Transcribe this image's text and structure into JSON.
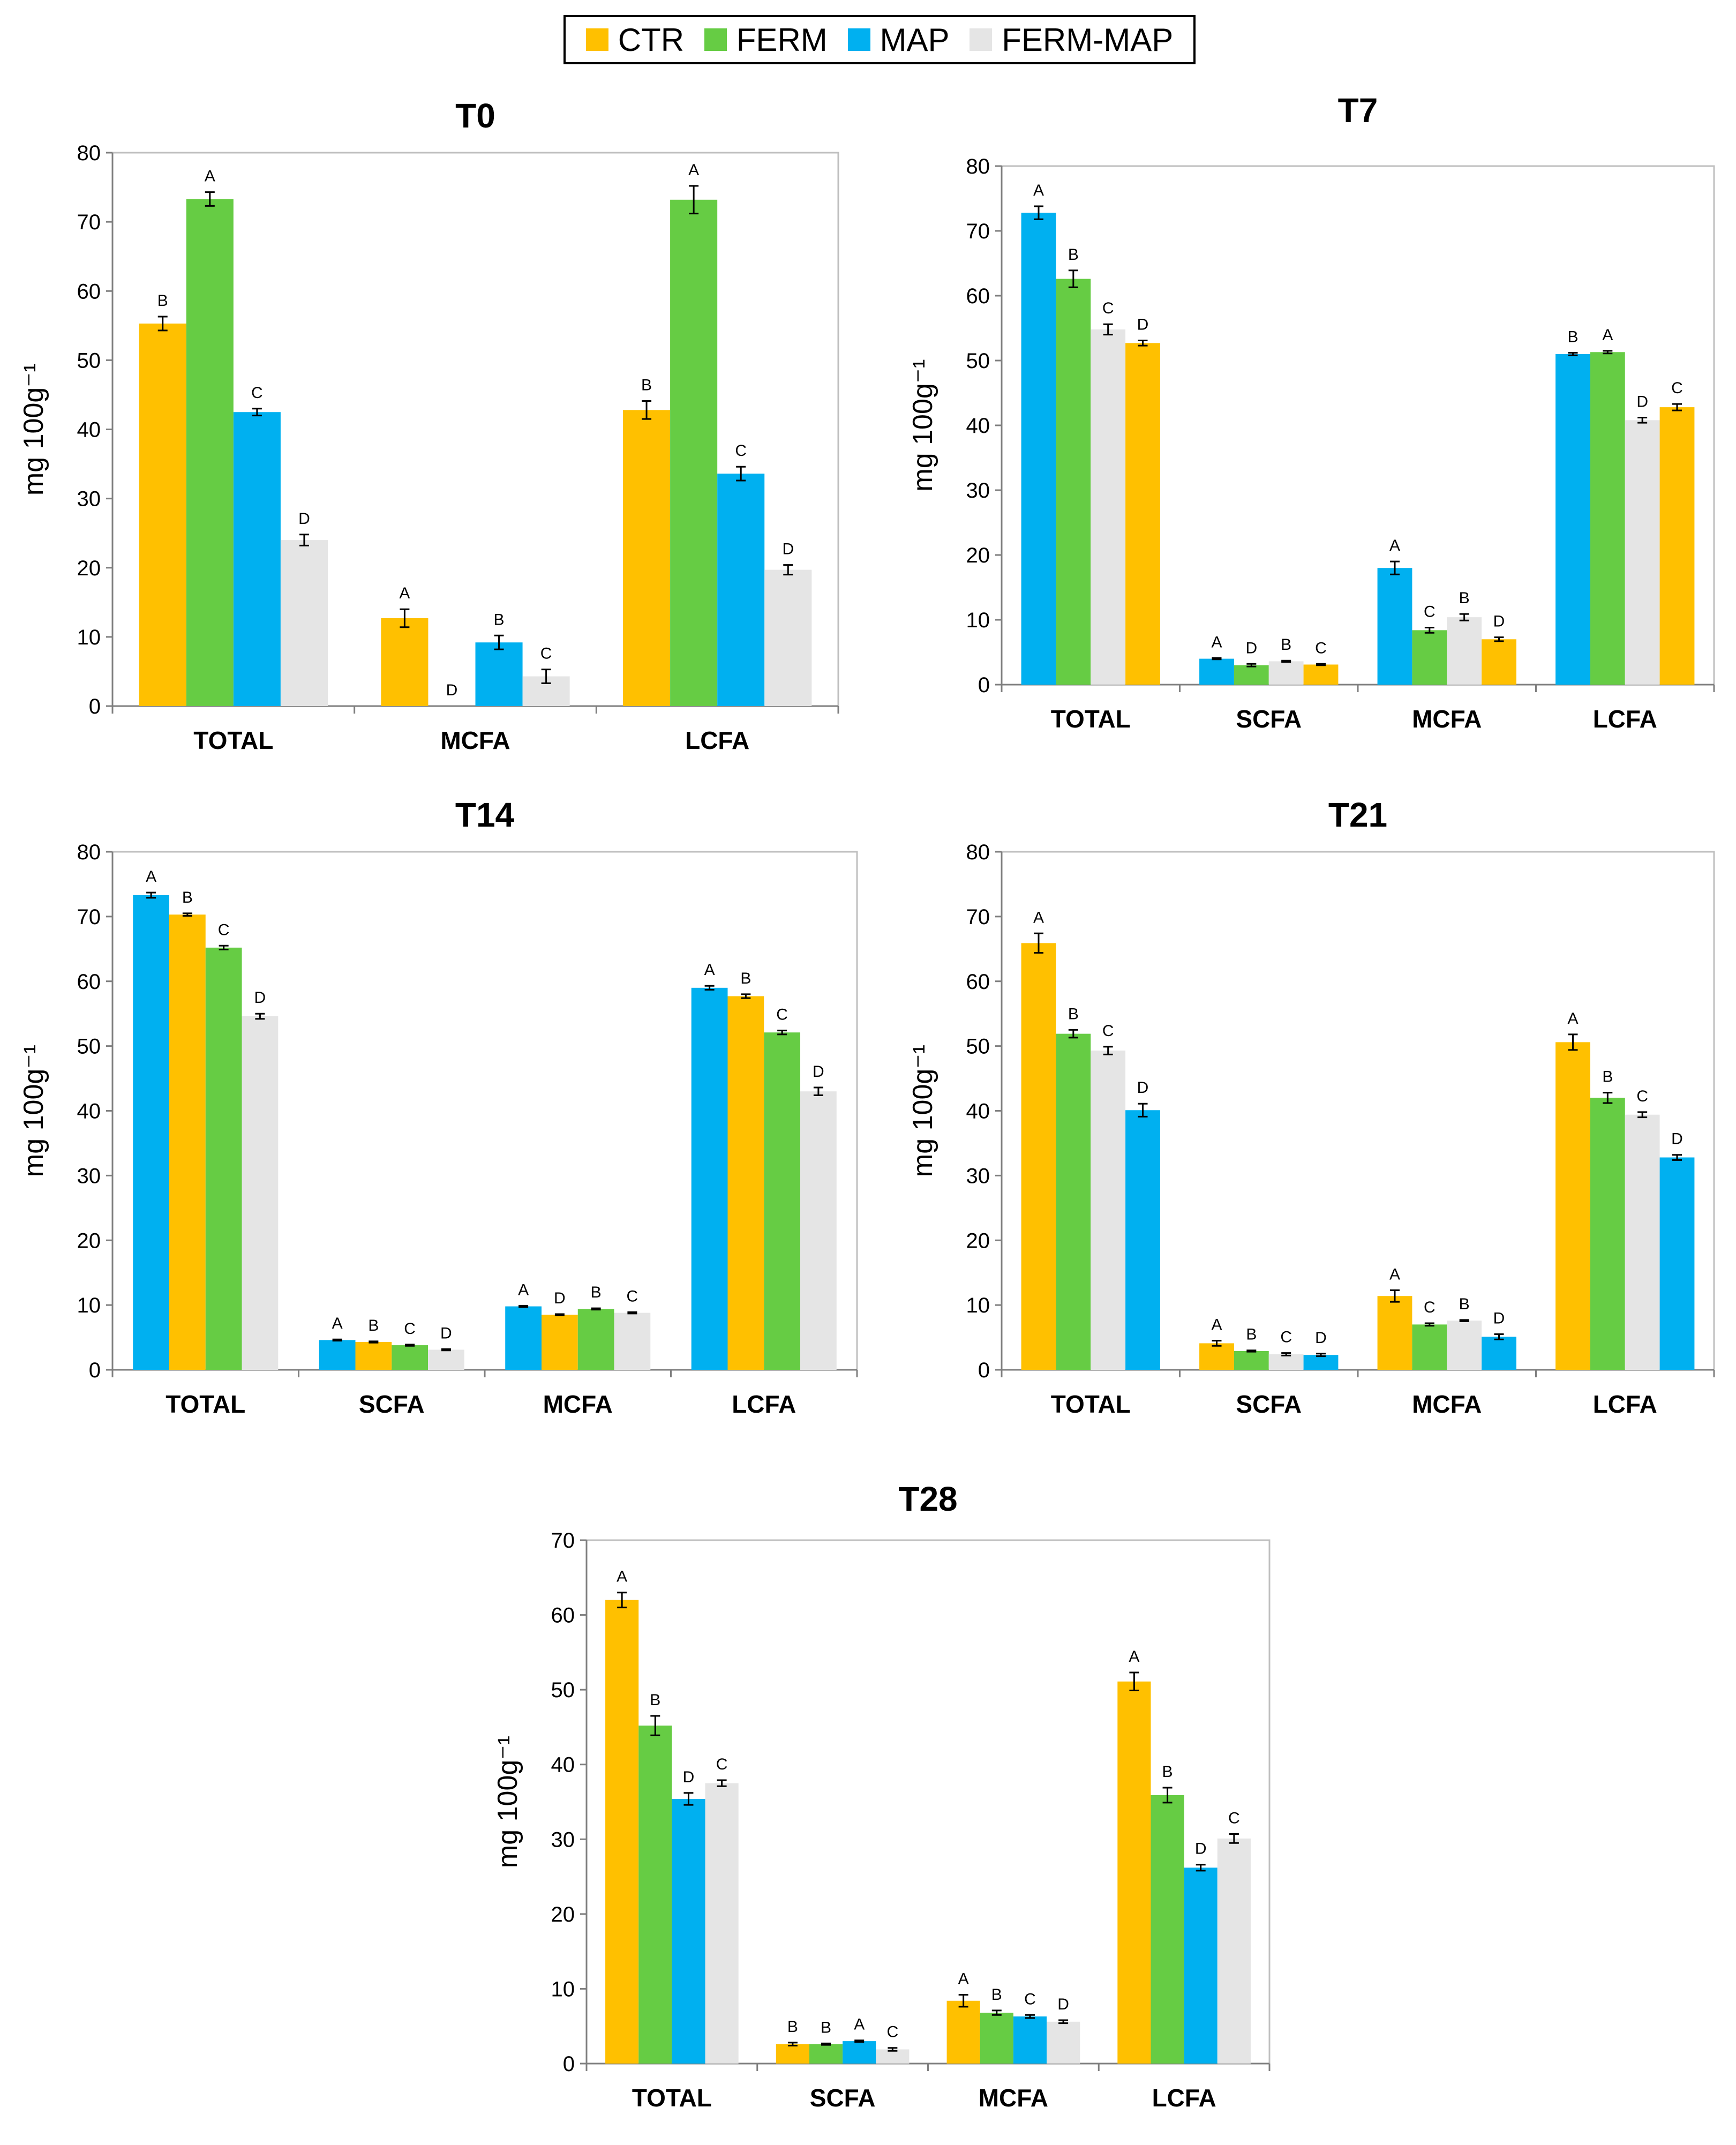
{
  "legend": {
    "items": [
      {
        "label": "CTR",
        "color": "#FFC000"
      },
      {
        "label": "FERM",
        "color": "#66CC44"
      },
      {
        "label": "MAP",
        "color": "#00B0F0"
      },
      {
        "label": "FERM-MAP",
        "color": "#E5E5E5"
      }
    ]
  },
  "chart_data": [
    {
      "type": "bar",
      "title": "T0",
      "ylabel": "mg 100g⁻¹",
      "ylim": [
        0,
        80
      ],
      "ytick_step": 10,
      "categories": [
        "TOTAL",
        "MCFA",
        "LCFA"
      ],
      "series": [
        {
          "name": "CTR",
          "values": [
            55.3,
            12.7,
            42.8
          ],
          "errors": [
            1.0,
            1.3,
            1.3
          ],
          "letters": [
            "B",
            "A",
            "B"
          ]
        },
        {
          "name": "FERM",
          "values": [
            73.3,
            0,
            73.2
          ],
          "errors": [
            1.0,
            0,
            2.0
          ],
          "letters": [
            "A",
            "D",
            "A"
          ]
        },
        {
          "name": "MAP",
          "values": [
            42.5,
            9.2,
            33.6
          ],
          "errors": [
            0.5,
            1.0,
            1.0
          ],
          "letters": [
            "C",
            "B",
            "C"
          ]
        },
        {
          "name": "FERM-MAP",
          "values": [
            24.0,
            4.3,
            19.7
          ],
          "errors": [
            0.8,
            1.0,
            0.7
          ],
          "letters": [
            "D",
            "C",
            "D"
          ]
        }
      ]
    },
    {
      "type": "bar",
      "title": "T7",
      "ylabel": "mg 100g⁻¹",
      "ylim": [
        0,
        80
      ],
      "ytick_step": 10,
      "categories": [
        "TOTAL",
        "SCFA",
        "MCFA",
        "LCFA"
      ],
      "series": [
        {
          "name": "MAP",
          "values": [
            72.8,
            4.0,
            18.0,
            51.0
          ],
          "errors": [
            1.0,
            0.1,
            1.0,
            0.2
          ],
          "letters": [
            "A",
            "A",
            "A",
            "B"
          ]
        },
        {
          "name": "FERM",
          "values": [
            62.6,
            3.0,
            8.4,
            51.3
          ],
          "errors": [
            1.3,
            0.2,
            0.4,
            0.2
          ],
          "letters": [
            "B",
            "D",
            "C",
            "A"
          ]
        },
        {
          "name": "FERM-MAP",
          "values": [
            54.8,
            3.6,
            10.4,
            40.8
          ],
          "errors": [
            0.8,
            0.1,
            0.5,
            0.4
          ],
          "letters": [
            "C",
            "B",
            "B",
            "D"
          ]
        },
        {
          "name": "CTR",
          "values": [
            52.7,
            3.1,
            7.0,
            42.8
          ],
          "errors": [
            0.4,
            0.1,
            0.3,
            0.5
          ],
          "letters": [
            "D",
            "C",
            "D",
            "C"
          ]
        }
      ]
    },
    {
      "type": "bar",
      "title": "T14",
      "ylabel": "mg 100g⁻¹",
      "ylim": [
        0,
        80
      ],
      "ytick_step": 10,
      "categories": [
        "TOTAL",
        "SCFA",
        "MCFA",
        "LCFA"
      ],
      "series": [
        {
          "name": "MAP",
          "values": [
            73.3,
            4.6,
            9.8,
            59.0
          ],
          "errors": [
            0.4,
            0.1,
            0.1,
            0.3
          ],
          "letters": [
            "A",
            "A",
            "A",
            "A"
          ]
        },
        {
          "name": "CTR",
          "values": [
            70.3,
            4.3,
            8.5,
            57.7
          ],
          "errors": [
            0.2,
            0.1,
            0.1,
            0.3
          ],
          "letters": [
            "B",
            "B",
            "D",
            "B"
          ]
        },
        {
          "name": "FERM",
          "values": [
            65.2,
            3.8,
            9.4,
            52.1
          ],
          "errors": [
            0.3,
            0.1,
            0.1,
            0.3
          ],
          "letters": [
            "C",
            "C",
            "B",
            "C"
          ]
        },
        {
          "name": "FERM-MAP",
          "values": [
            54.6,
            3.1,
            8.8,
            43.0
          ],
          "errors": [
            0.4,
            0.1,
            0.1,
            0.6
          ],
          "letters": [
            "D",
            "D",
            "C",
            "D"
          ]
        }
      ]
    },
    {
      "type": "bar",
      "title": "T21",
      "ylabel": "mg 100g⁻¹",
      "ylim": [
        0,
        80
      ],
      "ytick_step": 10,
      "categories": [
        "TOTAL",
        "SCFA",
        "MCFA",
        "LCFA"
      ],
      "series": [
        {
          "name": "CTR",
          "values": [
            65.9,
            4.1,
            11.4,
            50.6
          ],
          "errors": [
            1.5,
            0.4,
            0.9,
            1.2
          ],
          "letters": [
            "A",
            "A",
            "A",
            "A"
          ]
        },
        {
          "name": "FERM",
          "values": [
            51.9,
            2.9,
            7.0,
            42.0
          ],
          "errors": [
            0.6,
            0.1,
            0.2,
            0.8
          ],
          "letters": [
            "B",
            "B",
            "C",
            "B"
          ]
        },
        {
          "name": "FERM-MAP",
          "values": [
            49.3,
            2.4,
            7.6,
            39.4
          ],
          "errors": [
            0.6,
            0.2,
            0.1,
            0.4
          ],
          "letters": [
            "C",
            "C",
            "B",
            "C"
          ]
        },
        {
          "name": "MAP",
          "values": [
            40.1,
            2.3,
            5.1,
            32.8
          ],
          "errors": [
            1.0,
            0.2,
            0.4,
            0.4
          ],
          "letters": [
            "D",
            "D",
            "D",
            "D"
          ]
        }
      ]
    },
    {
      "type": "bar",
      "title": "T28",
      "ylabel": "mg 100g⁻¹",
      "ylim": [
        0,
        70
      ],
      "ytick_step": 10,
      "categories": [
        "TOTAL",
        "SCFA",
        "MCFA",
        "LCFA"
      ],
      "series": [
        {
          "name": "CTR",
          "values": [
            62.0,
            2.6,
            8.4,
            51.1
          ],
          "errors": [
            1.0,
            0.2,
            0.8,
            1.2
          ],
          "letters": [
            "A",
            "B",
            "A",
            "A"
          ]
        },
        {
          "name": "FERM",
          "values": [
            45.2,
            2.6,
            6.8,
            35.9
          ],
          "errors": [
            1.3,
            0.1,
            0.3,
            1.0
          ],
          "letters": [
            "B",
            "B",
            "B",
            "B"
          ]
        },
        {
          "name": "MAP",
          "values": [
            35.4,
            3.0,
            6.3,
            26.2
          ],
          "errors": [
            0.8,
            0.1,
            0.2,
            0.4
          ],
          "letters": [
            "D",
            "A",
            "C",
            "D"
          ]
        },
        {
          "name": "FERM-MAP",
          "values": [
            37.5,
            1.9,
            5.6,
            30.1
          ],
          "errors": [
            0.4,
            0.2,
            0.2,
            0.6
          ],
          "letters": [
            "C",
            "C",
            "D",
            "C"
          ]
        }
      ]
    }
  ]
}
